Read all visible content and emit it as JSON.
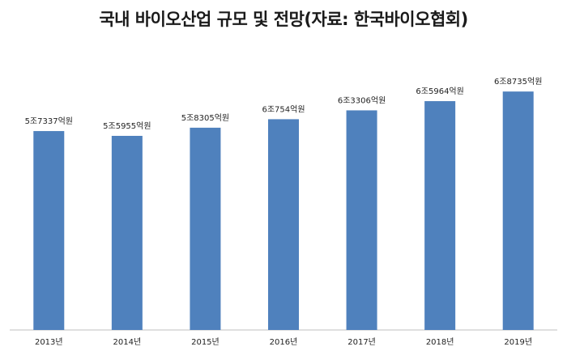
{
  "chart_data": {
    "type": "bar",
    "title": "국내 바이오산업 규모 및 전망(자료: 한국바이오협회)",
    "categories": [
      "2013년",
      "2014년",
      "2015년",
      "2016년",
      "2017년",
      "2018년",
      "2019년"
    ],
    "values": [
      57337,
      55955,
      58305,
      60754,
      63306,
      65964,
      68735
    ],
    "data_labels": [
      "5조7337억원",
      "5조5955억원",
      "5조8305억원",
      "6조754억원",
      "6조3306억원",
      "6조5964억원",
      "6조8735억원"
    ],
    "ylim": [
      0,
      76000
    ],
    "grid": false,
    "colors": {
      "bar": "#4f81bd"
    }
  }
}
